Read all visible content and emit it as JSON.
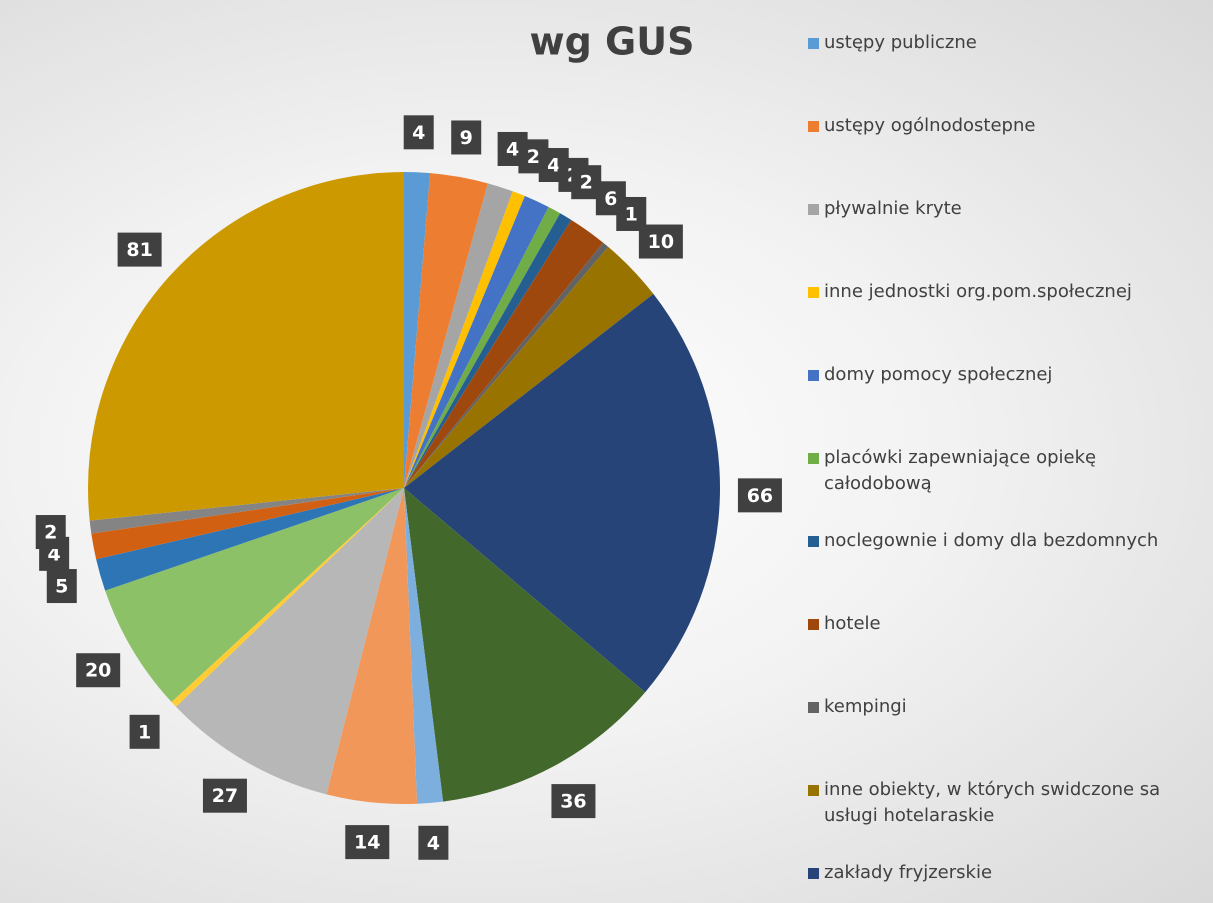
{
  "chart_data": {
    "type": "pie",
    "title": "wg GUS",
    "categories": [
      "ustępy publiczne",
      "ustępy ogólnodostepne",
      "pływalnie kryte",
      "inne jednostki org.pom.społecznej",
      "domy pomocy społecznej",
      "placówki zapewniające opiekę całodobową",
      "noclegownie i domy dla bezdomnych",
      "hotele",
      "kempingi",
      "inne obiekty, w których swidczone sa usługi hotelaraskie",
      "zakłady fryjzerskie",
      null,
      null,
      null,
      null,
      null,
      null,
      null,
      null,
      null,
      null
    ],
    "values": [
      4,
      9,
      4,
      2,
      4,
      2,
      2,
      6,
      1,
      10,
      66,
      36,
      4,
      14,
      27,
      1,
      20,
      5,
      4,
      2,
      81
    ],
    "colors": [
      "#5b9bd5",
      "#ed7d31",
      "#a5a5a5",
      "#ffc000",
      "#4472c4",
      "#70ad47",
      "#255e91",
      "#9e480e",
      "#636363",
      "#997300",
      "#264478",
      "#43682b",
      "#7cafdd",
      "#f1975a",
      "#b7b7b7",
      "#ffcd33",
      "#8cc168",
      "#2e75b6",
      "#d26012",
      "#848484",
      "#cc9a00"
    ]
  }
}
